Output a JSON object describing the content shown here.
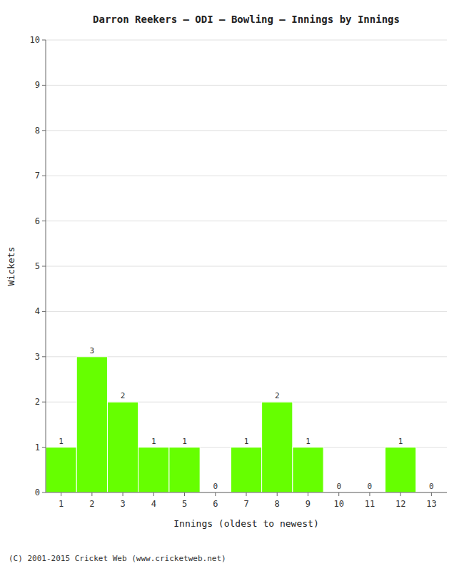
{
  "chart_data": {
    "type": "bar",
    "title": "Darron Reekers – ODI – Bowling – Innings by Innings",
    "x_label": "Innings (oldest to newest)",
    "y_label": "Wickets",
    "categories": [
      "1",
      "2",
      "3",
      "4",
      "5",
      "6",
      "7",
      "8",
      "9",
      "10",
      "11",
      "12",
      "13"
    ],
    "values": [
      1,
      3,
      2,
      1,
      1,
      0,
      1,
      2,
      1,
      0,
      0,
      1,
      0
    ],
    "color": "#66ff00",
    "ylim": [
      0,
      10
    ],
    "yticks": [
      0,
      1,
      2,
      3,
      4,
      5,
      6,
      7,
      8,
      9,
      10
    ],
    "grid": true,
    "data_labels": true,
    "annotations": [
      "(C) 2001-2015 Cricket Web (www.cricketweb.net)"
    ]
  }
}
